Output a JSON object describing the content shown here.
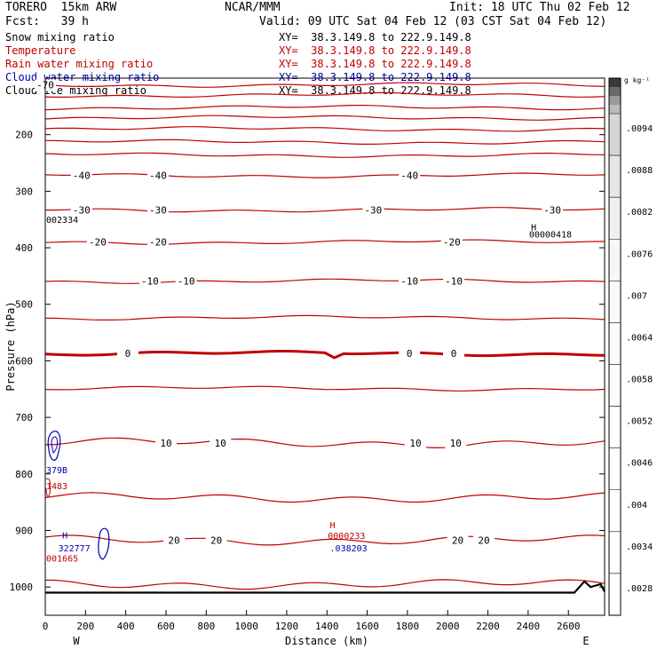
{
  "header": {
    "model": "TORERO  15km ARW",
    "org": "NCAR/MMM",
    "init": "Init: 18 UTC Thu 02 Feb 12",
    "fcst": "Fcst:   39 h",
    "valid": "Valid: 09 UTC Sat 04 Feb 12 (03 CST Sat 04 Feb 12)"
  },
  "fields": [
    {
      "name": "Snow mixing ratio",
      "xy": "XY=  38.3.149.8 to 222.9.149.8",
      "color": "#000000"
    },
    {
      "name": "Temperature",
      "xy": "XY=  38.3.149.8 to 222.9.149.8",
      "color": "#c00000"
    },
    {
      "name": "Rain water mixing ratio",
      "xy": "XY=  38.3.149.8 to 222.9.149.8",
      "color": "#c00000"
    },
    {
      "name": "Cloud water mixing ratio",
      "xy": "XY=  38.3.149.8 to 222.9.149.8",
      "color": "#0000b0"
    },
    {
      "name": "Cloud ice mixing ratio",
      "xy": "XY=  38.3.149.8 to 222.9.149.8",
      "color": "#000000"
    }
  ],
  "colorbar": {
    "unit": "g kg⁻¹",
    "labels": [
      ".0094",
      ".0088",
      ".0082",
      ".0076",
      ".007",
      ".0064",
      ".0058",
      ".0052",
      ".0046",
      ".004",
      ".0034",
      ".0028"
    ],
    "shades": [
      "#d6d6d6",
      "#e6e6e6",
      "#f0f0f0",
      "#f6f6f6",
      "#f9f9f9",
      "#fbfbfb",
      "#fcfcfc",
      "#fdfdfd",
      "#fefefe",
      "#ffffff",
      "#ffffff",
      "#ffffff"
    ],
    "top_shades": [
      "#3a3a3a",
      "#6a6a6a",
      "#9a9a9a",
      "#bcbcbc"
    ]
  },
  "chart_data": {
    "type": "line",
    "title": "",
    "xlabel": "Distance (km)",
    "ylabel": "Pressure (hPa)",
    "xlim": [
      0,
      2780
    ],
    "ylim": [
      1050,
      100
    ],
    "xticks": [
      0,
      200,
      400,
      600,
      800,
      1000,
      1200,
      1400,
      1600,
      1800,
      2000,
      2200,
      2400,
      2600
    ],
    "yticks": [
      200,
      300,
      400,
      500,
      600,
      700,
      800,
      900,
      1000
    ],
    "endpoints": {
      "left": "W",
      "right": "E"
    },
    "temperature_isotherms": [
      {
        "pressure_hpa": 112,
        "labels": [
          {
            "x": 0,
            "text": "-70"
          }
        ]
      },
      {
        "pressure_hpa": 130,
        "labels": []
      },
      {
        "pressure_hpa": 152,
        "labels": []
      },
      {
        "pressure_hpa": 170,
        "labels": []
      },
      {
        "pressure_hpa": 190,
        "labels": []
      },
      {
        "pressure_hpa": 213,
        "labels": []
      },
      {
        "pressure_hpa": 236,
        "labels": []
      },
      {
        "pressure_hpa": 272,
        "labels": [
          {
            "x": 180,
            "text": "-40"
          },
          {
            "x": 560,
            "text": "-40"
          },
          {
            "x": 1810,
            "text": "-40"
          }
        ]
      },
      {
        "pressure_hpa": 333,
        "labels": [
          {
            "x": 180,
            "text": "-30"
          },
          {
            "x": 560,
            "text": "-30"
          },
          {
            "x": 1630,
            "text": "-30"
          },
          {
            "x": 2520,
            "text": "-30"
          }
        ]
      },
      {
        "pressure_hpa": 390,
        "labels": [
          {
            "x": 260,
            "text": "-20"
          },
          {
            "x": 560,
            "text": "-20"
          },
          {
            "x": 2020,
            "text": "-20"
          }
        ]
      },
      {
        "pressure_hpa": 459,
        "labels": [
          {
            "x": 520,
            "text": "-10"
          },
          {
            "x": 700,
            "text": "-10"
          },
          {
            "x": 1810,
            "text": "-10"
          },
          {
            "x": 2030,
            "text": "-10"
          }
        ]
      },
      {
        "pressure_hpa": 524,
        "labels": []
      },
      {
        "pressure_hpa": 587,
        "bold": true,
        "labels": [
          {
            "x": 410,
            "text": "0"
          },
          {
            "x": 1810,
            "text": "0"
          },
          {
            "x": 2030,
            "text": "0"
          }
        ]
      },
      {
        "pressure_hpa": 649,
        "labels": []
      },
      {
        "pressure_hpa": 745,
        "labels": [
          {
            "x": 870,
            "text": "10"
          },
          {
            "x": 600,
            "text": "10"
          },
          {
            "x": 1840,
            "text": "10"
          },
          {
            "x": 2040,
            "text": "10"
          }
        ]
      },
      {
        "pressure_hpa": 842,
        "labels": []
      },
      {
        "pressure_hpa": 917,
        "labels": [
          {
            "x": 640,
            "text": "20"
          },
          {
            "x": 850,
            "text": "20"
          },
          {
            "x": 2050,
            "text": "20"
          },
          {
            "x": 2180,
            "text": "20"
          }
        ]
      },
      {
        "pressure_hpa": 995,
        "labels": []
      }
    ],
    "extrema_labels": [
      {
        "text": "002334",
        "x": 0,
        "p": 356,
        "color": "#000000"
      },
      {
        "text": "H",
        "x": 2410,
        "p": 369,
        "color": "#000000"
      },
      {
        "text": "00000418",
        "x": 2400,
        "p": 382,
        "color": "#000000"
      },
      {
        "text": "379B",
        "x": 0,
        "p": 799,
        "color": "#0000b0"
      },
      {
        "text": "1483",
        "x": 0,
        "p": 827,
        "color": "#c00000"
      },
      {
        "text": "H",
        "x": 80,
        "p": 914,
        "color": "#0000b0"
      },
      {
        "text": "322777",
        "x": 60,
        "p": 937,
        "color": "#0000b0"
      },
      {
        "text": "001665",
        "x": 0,
        "p": 955,
        "color": "#c00000"
      },
      {
        "text": "H",
        "x": 1410,
        "p": 896,
        "color": "#c00000"
      },
      {
        "text": "0000233",
        "x": 1400,
        "p": 915,
        "color": "#c00000"
      },
      {
        "text": ".038203",
        "x": 1410,
        "p": 937,
        "color": "#0000b0"
      }
    ]
  }
}
